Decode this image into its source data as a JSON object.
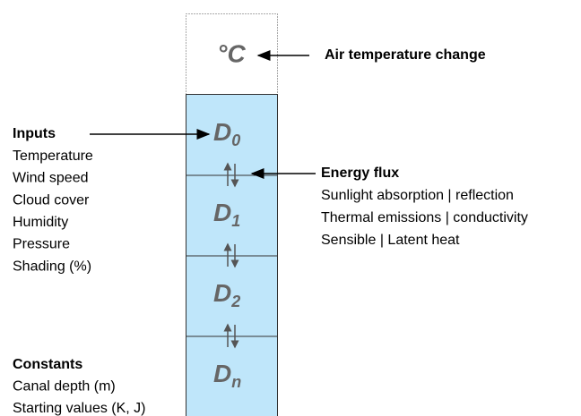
{
  "top": {
    "unit": "°C",
    "label": "Air temperature change"
  },
  "layers": [
    {
      "letter": "D",
      "sub": "0"
    },
    {
      "letter": "D",
      "sub": "1"
    },
    {
      "letter": "D",
      "sub": "2"
    },
    {
      "letter": "D",
      "sub": "n"
    }
  ],
  "inputs": {
    "title": "Inputs",
    "items": [
      "Temperature",
      "Wind speed",
      "Cloud cover",
      "Humidity",
      "Pressure",
      "Shading (%)"
    ]
  },
  "energy_flux": {
    "title": "Energy flux",
    "items": [
      "Sunlight absorption | reflection",
      "Thermal emissions | conductivity",
      "Sensible | Latent heat"
    ]
  },
  "constants": {
    "title": "Constants",
    "items": [
      "Canal depth (m)",
      "Starting values (K, J)"
    ]
  }
}
